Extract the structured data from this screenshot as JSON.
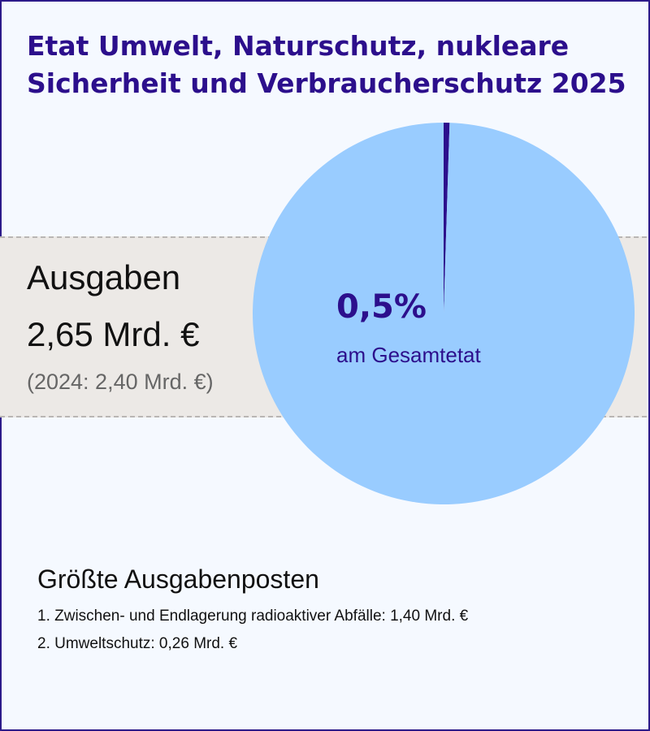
{
  "title": "Etat Umwelt, Naturschutz, nukleare Sicherheit und Verbraucherschutz 2025",
  "spending": {
    "label": "Ausgaben",
    "amount": "2,65 Mrd. €",
    "previous": "(2024: 2,40 Mrd. €)"
  },
  "share": {
    "value_text": "0,5%",
    "caption": "am Gesamtetat"
  },
  "chart_data": {
    "type": "pie",
    "slices": [
      {
        "label": "am Gesamtetat",
        "value": 0.5,
        "color": "#2c0f8c"
      },
      {
        "value": 99.5,
        "color": "#99ccff"
      }
    ]
  },
  "top_items": {
    "heading": "Größte Ausgabenposten",
    "items": [
      "1. Zwischen- und Endlagerung radioaktiver Abfälle: 1,40 Mrd. €",
      "2. Umweltschutz: 0,26 Mrd. €"
    ]
  }
}
